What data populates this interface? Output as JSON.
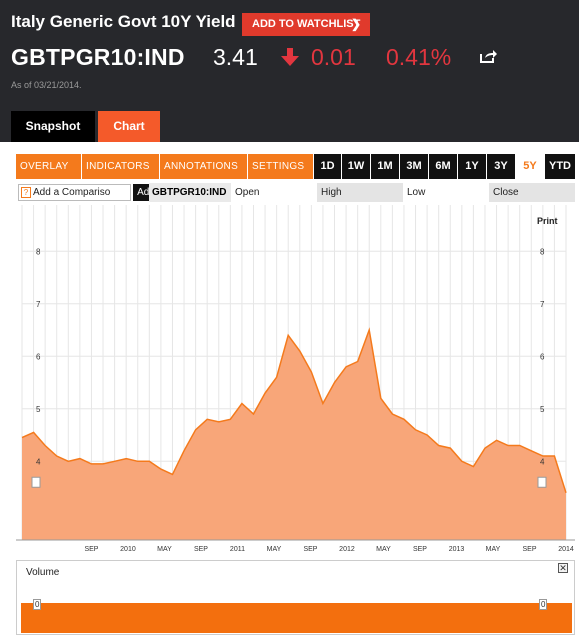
{
  "header": {
    "title": "Italy Generic Govt 10Y Yield",
    "watchlist_label": "ADD TO WATCHLIST",
    "ticker": "GBTPGR10:IND",
    "price": "3.41",
    "change": "0.01",
    "change_pct": "0.41%",
    "as_of": "As of 03/21/2014.",
    "down_color": "#e2363f",
    "icons": [
      "arrow-down-icon",
      "share-icon"
    ]
  },
  "tabs": [
    {
      "label": "Snapshot",
      "active": false
    },
    {
      "label": "Chart",
      "active": true
    }
  ],
  "toolbar": {
    "dropdowns": [
      "OVERLAY ▼",
      "INDICATORS ▼",
      "ANNOTATIONS ▼",
      "SETTINGS ▼"
    ],
    "ranges": [
      "1D",
      "1W",
      "1M",
      "3M",
      "6M",
      "1Y",
      "3Y",
      "5Y",
      "YTD"
    ],
    "active_range": "5Y"
  },
  "legend": {
    "compare_placeholder": "Add a Compariso",
    "add_label": "Add",
    "ticker": "GBTPGR10:IND",
    "open": "Open",
    "high": "High",
    "low": "Low",
    "close": "Close"
  },
  "print_label": "Print",
  "volume": {
    "label": "Volume",
    "close_icon": "close-icon",
    "axis_value": "0"
  },
  "chart_data": {
    "type": "area",
    "title": "",
    "xlabel": "",
    "ylabel": "",
    "ylim": [
      2.5,
      8.5
    ],
    "y_ticks": [
      "4",
      "5",
      "6",
      "7",
      "8"
    ],
    "x_tick_labels": [
      "SEP",
      "2010",
      "MAY",
      "SEP",
      "2011",
      "MAY",
      "SEP",
      "2012",
      "MAY",
      "SEP",
      "2013",
      "MAY",
      "SEP",
      "2014"
    ],
    "x": [
      "2009-03",
      "2009-05",
      "2009-07",
      "2009-09",
      "2009-11",
      "2010-01",
      "2010-03",
      "2010-05",
      "2010-07",
      "2010-09",
      "2010-11",
      "2011-01",
      "2011-03",
      "2011-05",
      "2011-06",
      "2011-07",
      "2011-08",
      "2011-09",
      "2011-10",
      "2011-11",
      "2011-12",
      "2012-01",
      "2012-02",
      "2012-03",
      "2012-04",
      "2012-05",
      "2012-06",
      "2012-07",
      "2012-08",
      "2012-09",
      "2012-10",
      "2012-11",
      "2012-12",
      "2013-01",
      "2013-02",
      "2013-03",
      "2013-04",
      "2013-05",
      "2013-06",
      "2013-07",
      "2013-08",
      "2013-09",
      "2013-10",
      "2013-11",
      "2013-12",
      "2014-01",
      "2014-02",
      "2014-03"
    ],
    "series": [
      {
        "values": [
          4.45,
          4.55,
          4.3,
          4.1,
          4.0,
          4.05,
          3.95,
          3.95,
          4.0,
          4.05,
          4.0,
          4.0,
          3.85,
          3.75,
          4.2,
          4.6,
          4.8,
          4.75,
          4.8,
          5.1,
          4.9,
          5.3,
          5.6,
          6.4,
          6.1,
          5.7,
          5.1,
          5.5,
          5.8,
          5.9,
          6.5,
          5.2,
          4.9,
          4.8,
          4.6,
          4.5,
          4.3,
          4.25,
          4.0,
          3.9,
          4.25,
          4.4,
          4.3,
          4.3,
          4.2,
          4.1,
          4.1,
          3.4
        ],
        "color": "#f47a1c",
        "fill": "#f8a679"
      }
    ],
    "grid": true,
    "legend": "none"
  }
}
